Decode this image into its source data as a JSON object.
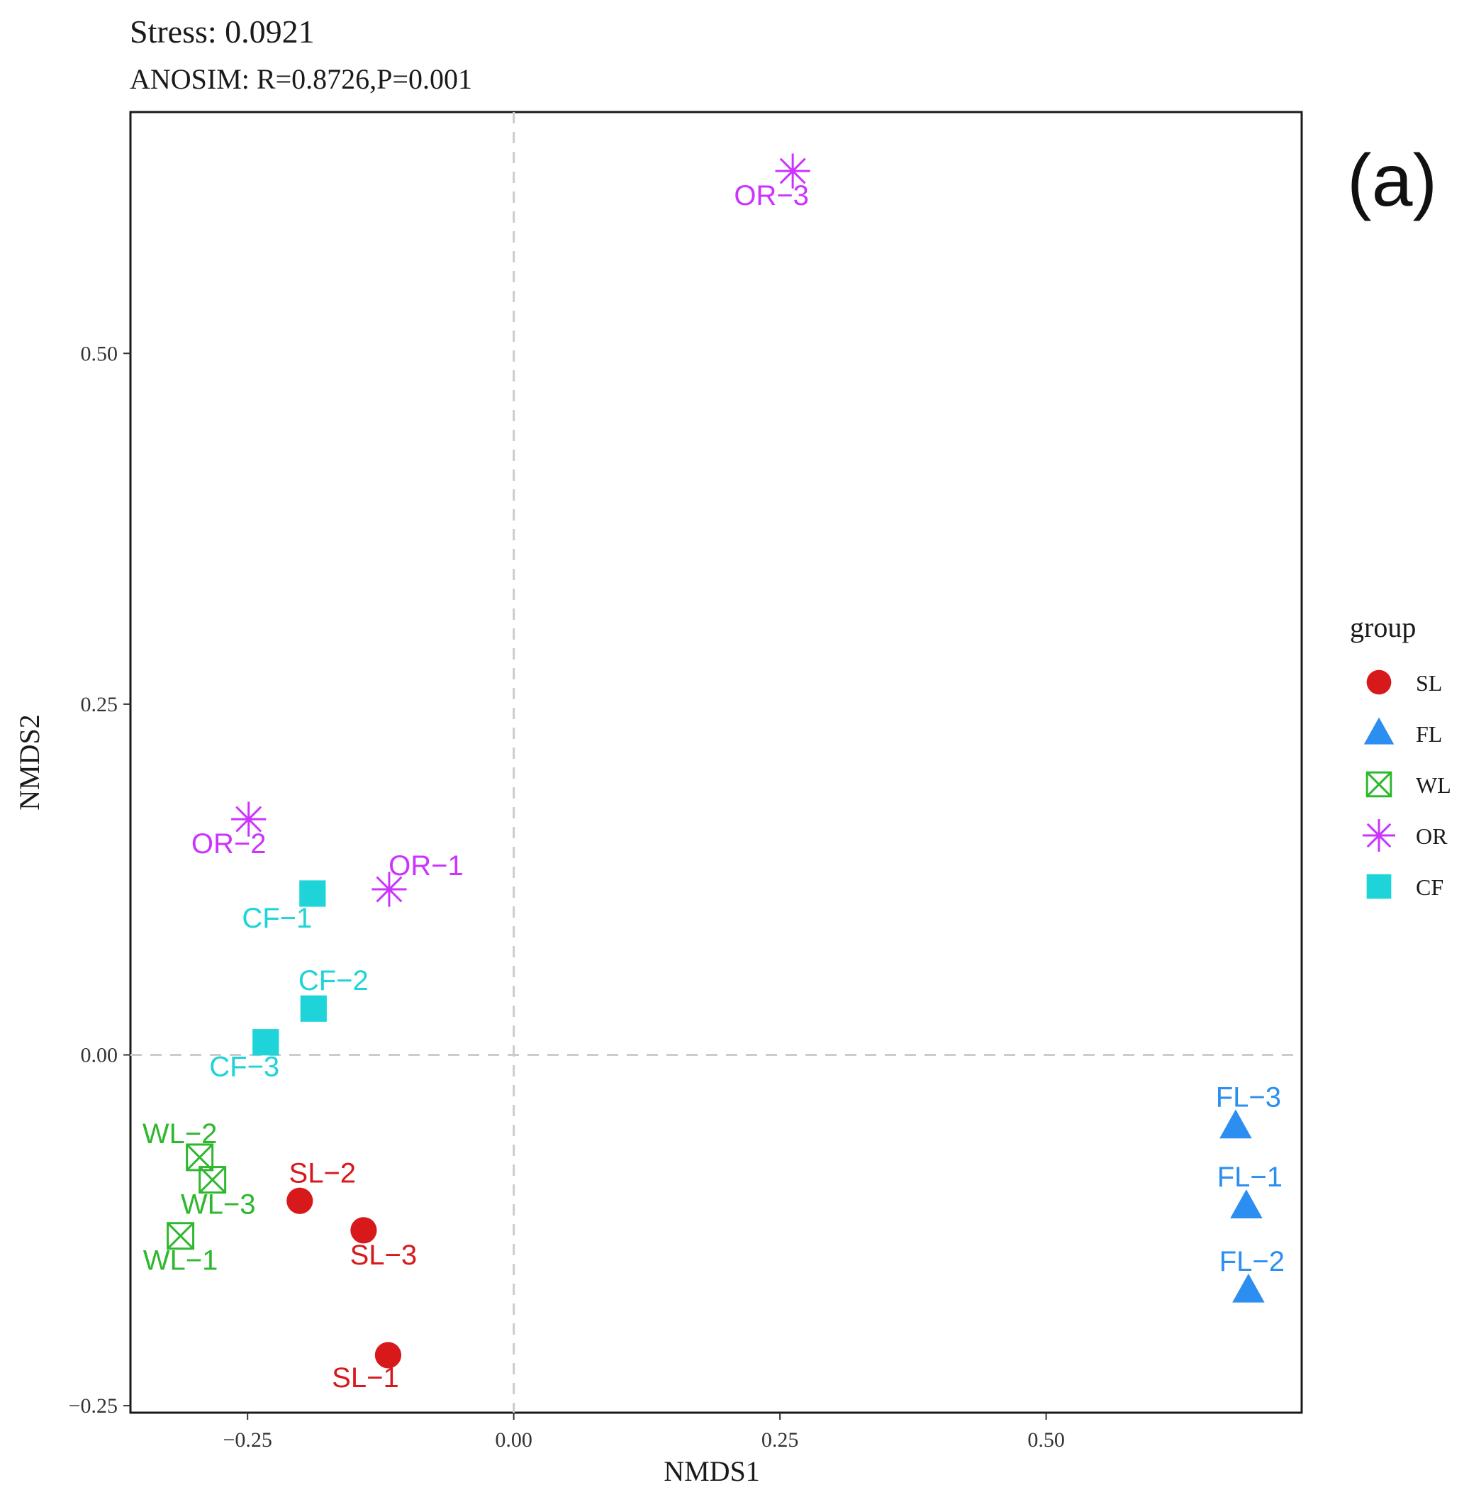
{
  "chart_data": {
    "type": "scatter",
    "title": "Stress: 0.0921",
    "subtitle": "ANOSIM: R=0.8726,P=0.001",
    "panel_label": "(a)",
    "xlabel": "NMDS1",
    "ylabel": "NMDS2",
    "xlim": [
      -0.36,
      0.74
    ],
    "ylim": [
      -0.255,
      0.672
    ],
    "xticks": [
      -0.25,
      0.0,
      0.25,
      0.5
    ],
    "xtick_labels": [
      "−0.25",
      "0.00",
      "0.25",
      "0.50"
    ],
    "yticks": [
      -0.25,
      0.0,
      0.25,
      0.5
    ],
    "ytick_labels": [
      "−0.25",
      "0.00",
      "0.25",
      "0.50"
    ],
    "reference_lines": {
      "x": 0,
      "y": 0,
      "style": "dashed"
    },
    "grid": false,
    "legend": {
      "title": "group",
      "position": "right",
      "entries": [
        {
          "group": "SL",
          "label": "SL"
        },
        {
          "group": "FL",
          "label": "FL"
        },
        {
          "group": "WL",
          "label": "WL"
        },
        {
          "group": "OR",
          "label": "OR"
        },
        {
          "group": "CF",
          "label": "CF"
        }
      ]
    },
    "groups": {
      "SL": {
        "color": "#d7191c",
        "shape": "circle"
      },
      "FL": {
        "color": "#2b8ef0",
        "shape": "triangle"
      },
      "WL": {
        "color": "#2eb82e",
        "shape": "boxed-x"
      },
      "OR": {
        "color": "#cc33ff",
        "shape": "asterisk"
      },
      "CF": {
        "color": "#1ed4d8",
        "shape": "square"
      }
    },
    "points": [
      {
        "label": "SL−1",
        "group": "SL",
        "x": -0.118,
        "y": -0.214
      },
      {
        "label": "SL−2",
        "group": "SL",
        "x": -0.201,
        "y": -0.104
      },
      {
        "label": "SL−3",
        "group": "SL",
        "x": -0.141,
        "y": -0.125
      },
      {
        "label": "FL−1",
        "group": "FL",
        "x": 0.688,
        "y": -0.108
      },
      {
        "label": "FL−2",
        "group": "FL",
        "x": 0.69,
        "y": -0.168
      },
      {
        "label": "FL−3",
        "group": "FL",
        "x": 0.678,
        "y": -0.051
      },
      {
        "label": "WL−1",
        "group": "WL",
        "x": -0.313,
        "y": -0.129
      },
      {
        "label": "WL−2",
        "group": "WL",
        "x": -0.295,
        "y": -0.073
      },
      {
        "label": "WL−3",
        "group": "WL",
        "x": -0.283,
        "y": -0.089
      },
      {
        "label": "OR−1",
        "group": "OR",
        "x": -0.117,
        "y": 0.118
      },
      {
        "label": "OR−2",
        "group": "OR",
        "x": -0.249,
        "y": 0.168
      },
      {
        "label": "OR−3",
        "group": "OR",
        "x": 0.262,
        "y": 0.63
      },
      {
        "label": "CF−1",
        "group": "CF",
        "x": -0.189,
        "y": 0.115
      },
      {
        "label": "CF−2",
        "group": "CF",
        "x": -0.188,
        "y": 0.033
      },
      {
        "label": "CF−3",
        "group": "CF",
        "x": -0.233,
        "y": 0.009
      }
    ]
  }
}
